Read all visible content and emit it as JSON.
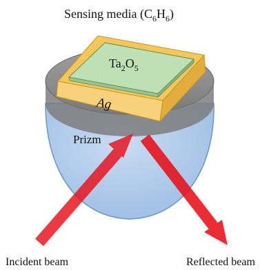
{
  "title": {
    "prefix": "Sensing media (C",
    "sub1": "6",
    "mid": "H",
    "sub2": "6",
    "suffix": ")"
  },
  "oxide_label": {
    "base1": "Ta",
    "sub1": "2",
    "base2": "O",
    "sub2": "5"
  },
  "metal_label": "Ag",
  "prism_label": "Prizm",
  "incident_label": "Incident beam",
  "reflected_label": "Reflected beam",
  "colors": {
    "prism_fill": "#aac8e8",
    "prism_stroke": "#6f93c4",
    "top_disk": "#8c8c8c",
    "silver_layer": "#f7cc66",
    "oxide_layer": "#bfe0b4",
    "beam": "#e8101a"
  }
}
